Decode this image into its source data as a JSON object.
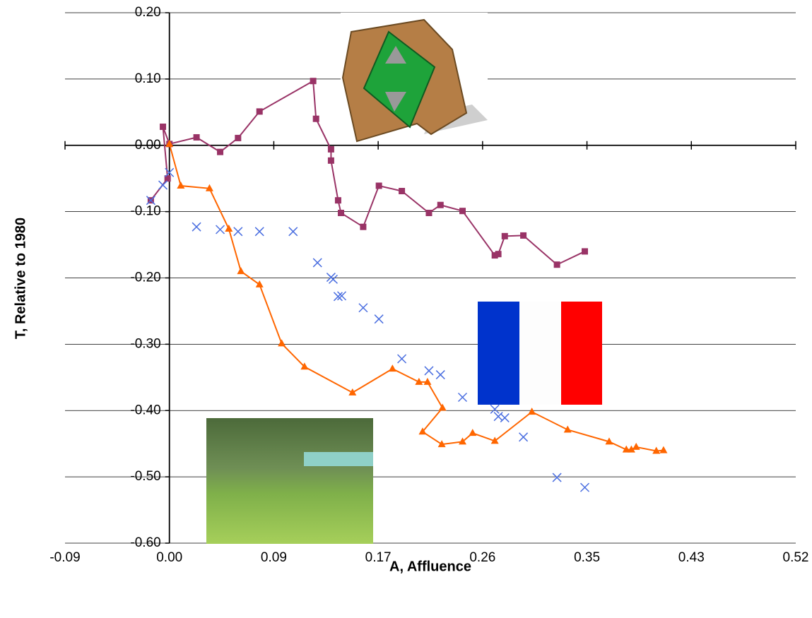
{
  "chart_data": {
    "type": "scatter",
    "x_label": "A, Affluence",
    "y_label": "T, Relative to 1980",
    "xlim": [
      -0.087,
      0.522
    ],
    "xticks": [
      {
        "value": -0.087,
        "label": "-0.09"
      },
      {
        "value": 0,
        "label": "0.00"
      },
      {
        "value": 0.087,
        "label": "0.09"
      },
      {
        "value": 0.174,
        "label": "0.17"
      },
      {
        "value": 0.261,
        "label": "0.26"
      },
      {
        "value": 0.348,
        "label": "0.35"
      },
      {
        "value": 0.435,
        "label": "0.43"
      },
      {
        "value": 0.522,
        "label": "0.52"
      }
    ],
    "ylim": [
      -0.6,
      0.2
    ],
    "yticks": [
      {
        "value": 0.2,
        "label": "0.20"
      },
      {
        "value": 0.1,
        "label": "0.10"
      },
      {
        "value": 0,
        "label": "0.00"
      },
      {
        "value": -0.1,
        "label": "-0.10"
      },
      {
        "value": -0.2,
        "label": "-0.20"
      },
      {
        "value": -0.3,
        "label": "-0.30"
      },
      {
        "value": -0.4,
        "label": "-0.40"
      },
      {
        "value": -0.5,
        "label": "-0.50"
      },
      {
        "value": -0.6,
        "label": "-0.60"
      }
    ],
    "grid": true,
    "series": [
      {
        "color": "#993366",
        "marker": "square",
        "line": true,
        "x": [
          -0.0155,
          -0.0015,
          -0.0054,
          0,
          0.0226,
          0.0423,
          0.0572,
          0.0751,
          0.1198,
          0.1222,
          0.1347,
          0.1347,
          0.1406,
          0.143,
          0.1615,
          0.1746,
          0.1937,
          0.2163,
          0.2259,
          0.2443,
          0.2712,
          0.2741,
          0.2795,
          0.295,
          0.323,
          0.3462
        ],
        "values": [
          -0.083,
          -0.05,
          0.028,
          0.002,
          0.012,
          -0.01,
          0.011,
          0.051,
          0.097,
          0.04,
          -0.006,
          -0.023,
          -0.083,
          -0.102,
          -0.123,
          -0.061,
          -0.069,
          -0.102,
          -0.09,
          -0.099,
          -0.166,
          -0.164,
          -0.137,
          -0.136,
          -0.18,
          -0.16
        ]
      },
      {
        "color": "#ff6600",
        "marker": "triangle",
        "line": true,
        "x": [
          0,
          0.0095,
          0.0334,
          0.0495,
          0.0596,
          0.0751,
          0.0936,
          0.1126,
          0.1526,
          0.1859,
          0.208,
          0.2151,
          0.2276,
          0.211,
          0.227,
          0.2443,
          0.2527,
          0.2712,
          0.3021,
          0.3319,
          0.3665,
          0.3808,
          0.385,
          0.389,
          0.4058,
          0.4118
        ],
        "values": [
          0.002,
          -0.061,
          -0.065,
          -0.126,
          -0.19,
          -0.21,
          -0.299,
          -0.334,
          -0.373,
          -0.337,
          -0.357,
          -0.357,
          -0.396,
          -0.432,
          -0.451,
          -0.447,
          -0.434,
          -0.446,
          -0.402,
          -0.429,
          -0.447,
          -0.459,
          -0.459,
          -0.455,
          -0.461,
          -0.46
        ]
      },
      {
        "color": "#4a6ee0",
        "marker": "x",
        "line": false,
        "x": [
          -0.0155,
          -0.0054,
          0,
          0.0226,
          0.0423,
          0.0572,
          0.0751,
          0.1031,
          0.1234,
          0.1347,
          0.1365,
          0.1406,
          0.1436,
          0.1615,
          0.1746,
          0.1937,
          0.2163,
          0.2259,
          0.2443,
          0.2712,
          0.2741,
          0.2795,
          0.295,
          0.323,
          0.3462
        ],
        "values": [
          -0.083,
          -0.06,
          -0.041,
          -0.123,
          -0.127,
          -0.13,
          -0.13,
          -0.13,
          -0.177,
          -0.199,
          -0.202,
          -0.228,
          -0.227,
          -0.245,
          -0.262,
          -0.322,
          -0.34,
          -0.346,
          -0.38,
          -0.398,
          -0.409,
          -0.411,
          -0.44,
          -0.501,
          -0.516
        ]
      }
    ]
  }
}
